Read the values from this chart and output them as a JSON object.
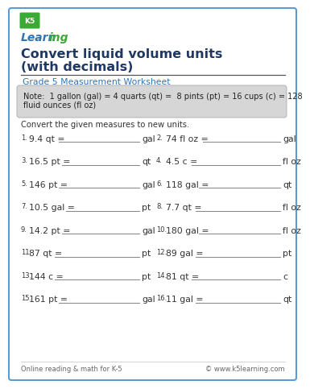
{
  "title_line1": "Convert liquid volume units",
  "title_line2": "(with decimals)",
  "subtitle": "Grade 5 Measurement Worksheet",
  "note_line1": "Note:  1 gallon (gal) = 4 quarts (qt) =  8 pints (pt) = 16 cups (c) = 128",
  "note_line2": "fluid ounces (fl oz)",
  "instruction": "Convert the given measures to new units.",
  "problems": [
    {
      "num": "1.",
      "question": "9.4 qt =",
      "unit": "gal",
      "col": 0
    },
    {
      "num": "2.",
      "question": "74 fl oz =",
      "unit": "gal",
      "col": 1
    },
    {
      "num": "3.",
      "question": "16.5 pt =",
      "unit": "qt",
      "col": 0
    },
    {
      "num": "4.",
      "question": "4.5 c =",
      "unit": "fl oz",
      "col": 1
    },
    {
      "num": "5.",
      "question": "146 pt =",
      "unit": "gal",
      "col": 0
    },
    {
      "num": "6.",
      "question": "118 gal =",
      "unit": "qt",
      "col": 1
    },
    {
      "num": "7.",
      "question": "10.5 gal =",
      "unit": "pt",
      "col": 0
    },
    {
      "num": "8.",
      "question": "7.7 qt =",
      "unit": "fl oz",
      "col": 1
    },
    {
      "num": "9.",
      "question": "14.2 pt =",
      "unit": "gal",
      "col": 0
    },
    {
      "num": "10.",
      "question": "180 gal =",
      "unit": "fl oz",
      "col": 1
    },
    {
      "num": "11.",
      "question": "87 qt =",
      "unit": "pt",
      "col": 0
    },
    {
      "num": "12.",
      "question": "89 gal =",
      "unit": "pt",
      "col": 1
    },
    {
      "num": "13.",
      "question": "144 c =",
      "unit": "pt",
      "col": 0
    },
    {
      "num": "14.",
      "question": "81 qt =",
      "unit": "c",
      "col": 1
    },
    {
      "num": "15.",
      "question": "161 pt =",
      "unit": "gal",
      "col": 0
    },
    {
      "num": "16.",
      "question": "11 gal =",
      "unit": "qt",
      "col": 1
    }
  ],
  "footer_left": "Online reading & math for K-5",
  "footer_right": "© www.k5learning.com",
  "border_color": "#5b9bd5",
  "title_color": "#1f3864",
  "subtitle_color": "#2e75b6",
  "note_bg": "#d6d6d6",
  "problem_color": "#333333",
  "line_color": "#888888",
  "footer_color": "#666666",
  "bg_color": "#ffffff",
  "logo_green": "#3aaa35",
  "logo_blue": "#2e75b6"
}
